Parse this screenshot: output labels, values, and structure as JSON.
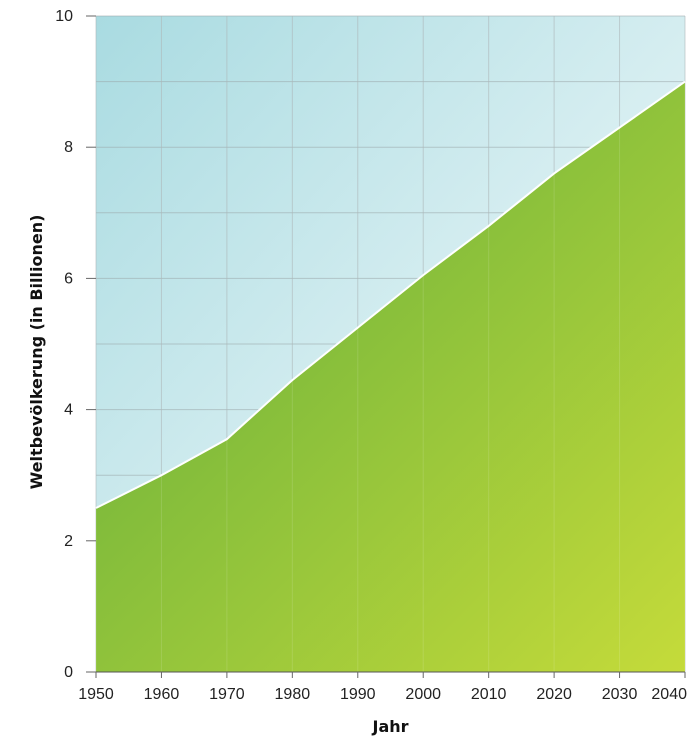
{
  "chart_data": {
    "type": "area",
    "x": [
      1950,
      1960,
      1970,
      1980,
      1990,
      2000,
      2010,
      2020,
      2030,
      2040
    ],
    "values": [
      2.5,
      3.0,
      3.55,
      4.45,
      5.25,
      6.05,
      6.8,
      7.6,
      8.3,
      9.0
    ],
    "xlabel": "Jahr",
    "ylabel": "Weltbevölkerung (in Billionen)",
    "xticks": [
      "1950",
      "1960",
      "1970",
      "1980",
      "1990",
      "2000",
      "2010",
      "2020",
      "2030",
      "2040"
    ],
    "yticks": [
      "0",
      "2",
      "4",
      "6",
      "8",
      "10"
    ],
    "xlim": [
      1950,
      2040
    ],
    "ylim": [
      0,
      10
    ],
    "grid": true,
    "colors": {
      "area_top": "#5aaa3c",
      "area_bottom": "#c5db3a",
      "background_top": "#a9dbe1",
      "background_bottom": "#ffffff",
      "line": "#ffffff"
    }
  }
}
